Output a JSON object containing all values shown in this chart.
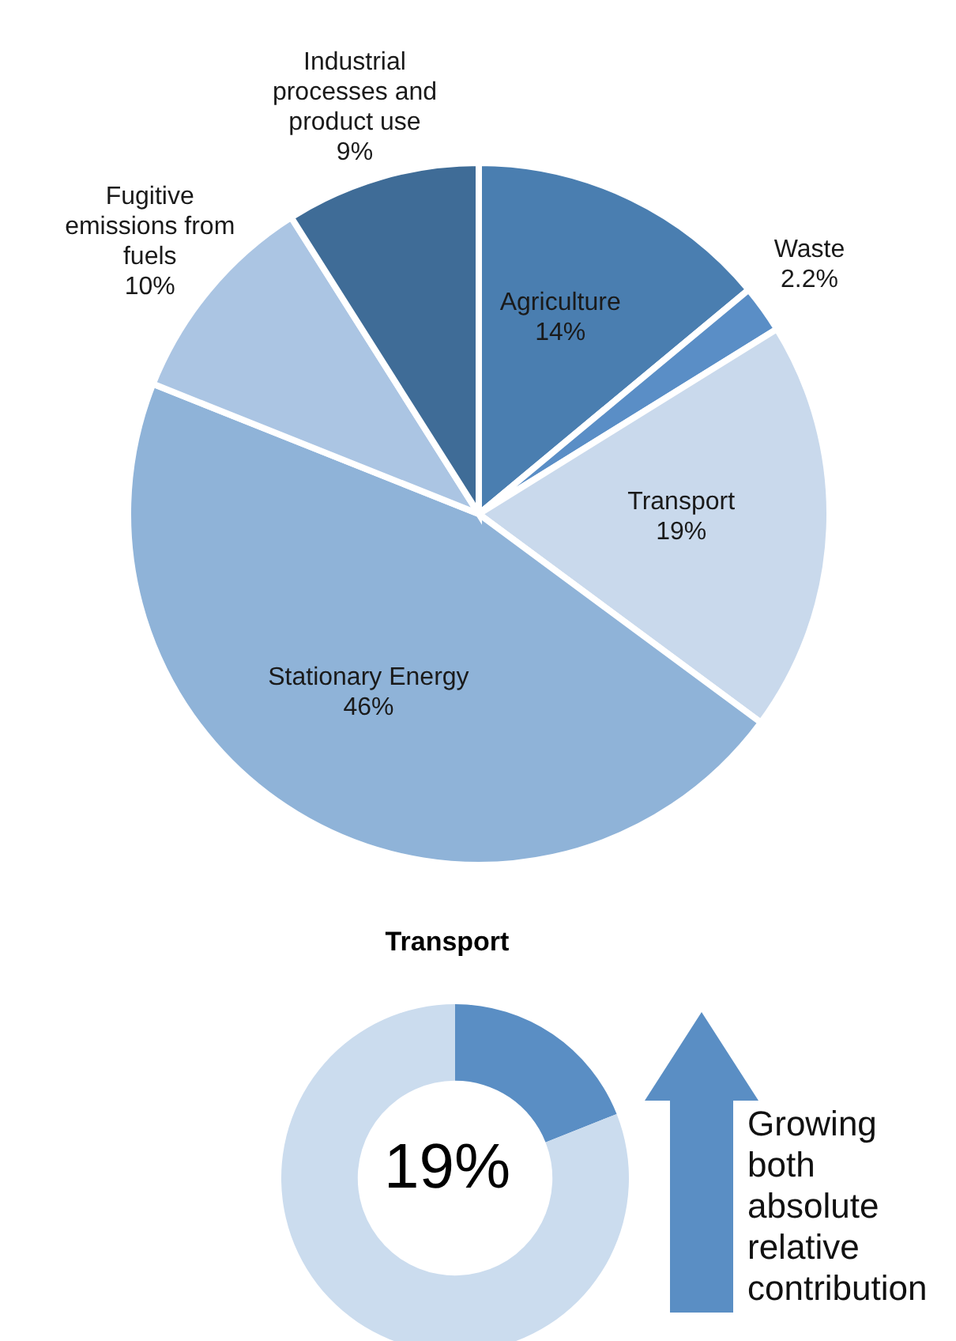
{
  "chart_data": [
    {
      "type": "pie",
      "categories": [
        "Agriculture",
        "Waste",
        "Transport",
        "Stationary Energy",
        "Fugitive emissions from fuels",
        "Industrial processes and product use"
      ],
      "values": [
        14,
        2.2,
        19,
        46,
        10,
        9
      ],
      "value_labels": [
        "14%",
        "2.2%",
        "19%",
        "46%",
        "10%",
        "9%"
      ],
      "colors": [
        "#4a7eb0",
        "#5a8ec6",
        "#c9d9ec",
        "#8fb3d8",
        "#abc5e3",
        "#3f6c97"
      ]
    },
    {
      "type": "donut",
      "title": "Transport",
      "categories": [
        null,
        null
      ],
      "values": [
        19,
        81
      ],
      "colors": [
        "#5a8ec4",
        "#cbdcee"
      ],
      "annotations": [
        "19%",
        "Growing both absolute relative contribution"
      ]
    }
  ]
}
